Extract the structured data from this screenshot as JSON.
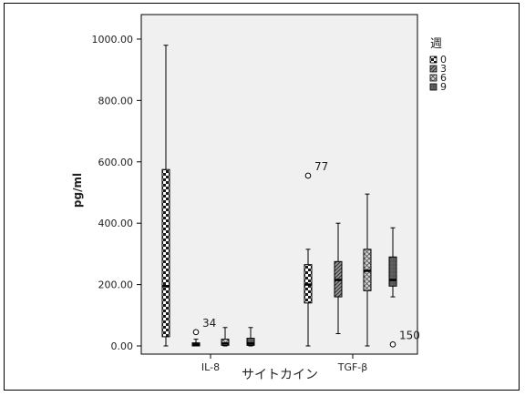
{
  "chart_data": {
    "type": "box",
    "title": "",
    "xlabel": "サイトカイン",
    "ylabel": "pg/ml",
    "ylim": [
      0,
      1080
    ],
    "yticks": [
      0,
      200,
      400,
      600,
      800,
      1000
    ],
    "ytick_labels": [
      "0.00",
      "200.00",
      "400.00",
      "600.00",
      "800.00",
      "1000.00"
    ],
    "categories": [
      "IL-8",
      "TGF-β"
    ],
    "legend": {
      "title": "週",
      "position": "right",
      "entries": [
        {
          "label": "0",
          "pattern": "checker"
        },
        {
          "label": "3",
          "pattern": "diagonal"
        },
        {
          "label": "6",
          "pattern": "crosshatch"
        },
        {
          "label": "9",
          "pattern": "dark"
        }
      ]
    },
    "series": [
      {
        "week": "0",
        "pattern": "checker",
        "boxes": [
          {
            "category": "IL-8",
            "min": 0,
            "q1": 30,
            "median": 195,
            "q3": 575,
            "max": 980,
            "outliers": []
          },
          {
            "category": "TGF-β",
            "min": 0,
            "q1": 140,
            "median": 200,
            "q3": 265,
            "max": 315,
            "outliers": [
              {
                "value": 555,
                "label": "77"
              }
            ]
          }
        ]
      },
      {
        "week": "3",
        "pattern": "diagonal",
        "boxes": [
          {
            "category": "IL-8",
            "min": 0,
            "q1": 0,
            "median": 5,
            "q3": 10,
            "max": 22,
            "outliers": [
              {
                "value": 45,
                "label": "34"
              }
            ]
          },
          {
            "category": "TGF-β",
            "min": 40,
            "q1": 160,
            "median": 215,
            "q3": 275,
            "max": 400,
            "outliers": []
          }
        ]
      },
      {
        "week": "6",
        "pattern": "crosshatch",
        "boxes": [
          {
            "category": "IL-8",
            "min": 0,
            "q1": 2,
            "median": 8,
            "q3": 22,
            "max": 60,
            "outliers": []
          },
          {
            "category": "TGF-β",
            "min": 0,
            "q1": 180,
            "median": 245,
            "q3": 315,
            "max": 495,
            "outliers": []
          }
        ]
      },
      {
        "week": "9",
        "pattern": "dark",
        "boxes": [
          {
            "category": "IL-8",
            "min": 0,
            "q1": 2,
            "median": 8,
            "q3": 25,
            "max": 60,
            "outliers": []
          },
          {
            "category": "TGF-β",
            "min": 160,
            "q1": 195,
            "median": 215,
            "q3": 290,
            "max": 385,
            "outliers": [
              {
                "value": 5,
                "label": "150"
              }
            ]
          }
        ]
      }
    ]
  }
}
